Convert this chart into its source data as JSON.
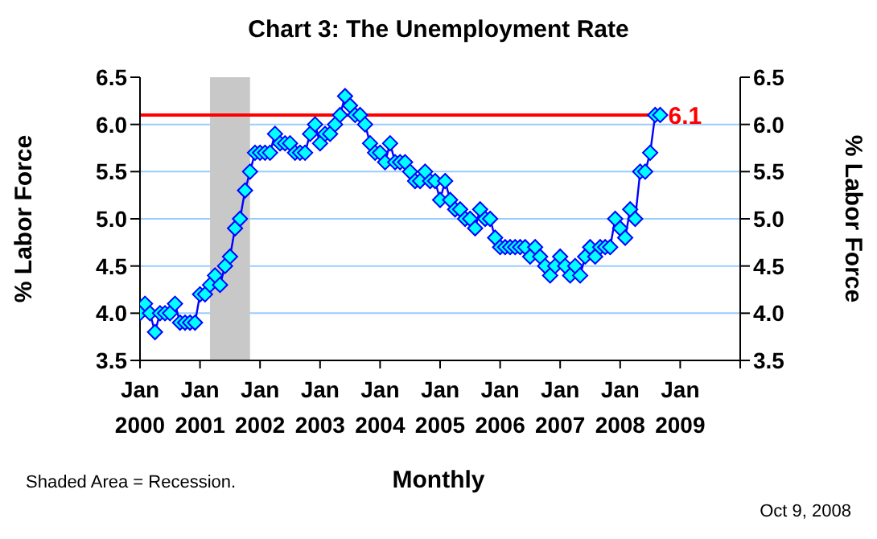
{
  "chart_data": {
    "type": "line",
    "title": "Chart 3: The Unemployment Rate",
    "xlabel": "Monthly",
    "ylabel": "% Labor Force",
    "y2label": "% Labor Force",
    "annotations": [
      "Shaded Area = Recession.",
      "Oct 9, 2008"
    ],
    "x": [
      "2000-01",
      "2000-02",
      "2000-03",
      "2000-04",
      "2000-05",
      "2000-06",
      "2000-07",
      "2000-08",
      "2000-09",
      "2000-10",
      "2000-11",
      "2000-12",
      "2001-01",
      "2001-02",
      "2001-03",
      "2001-04",
      "2001-05",
      "2001-06",
      "2001-07",
      "2001-08",
      "2001-09",
      "2001-10",
      "2001-11",
      "2001-12",
      "2002-01",
      "2002-02",
      "2002-03",
      "2002-04",
      "2002-05",
      "2002-06",
      "2002-07",
      "2002-08",
      "2002-09",
      "2002-10",
      "2002-11",
      "2002-12",
      "2003-01",
      "2003-02",
      "2003-03",
      "2003-04",
      "2003-05",
      "2003-06",
      "2003-07",
      "2003-08",
      "2003-09",
      "2003-10",
      "2003-11",
      "2003-12",
      "2004-01",
      "2004-02",
      "2004-03",
      "2004-04",
      "2004-05",
      "2004-06",
      "2004-07",
      "2004-08",
      "2004-09",
      "2004-10",
      "2004-11",
      "2004-12",
      "2005-01",
      "2005-02",
      "2005-03",
      "2005-04",
      "2005-05",
      "2005-06",
      "2005-07",
      "2005-08",
      "2005-09",
      "2005-10",
      "2005-11",
      "2005-12",
      "2006-01",
      "2006-02",
      "2006-03",
      "2006-04",
      "2006-05",
      "2006-06",
      "2006-07",
      "2006-08",
      "2006-09",
      "2006-10",
      "2006-11",
      "2006-12",
      "2007-01",
      "2007-02",
      "2007-03",
      "2007-04",
      "2007-05",
      "2007-06",
      "2007-07",
      "2007-08",
      "2007-09",
      "2007-10",
      "2007-11",
      "2007-12",
      "2008-01",
      "2008-02",
      "2008-03",
      "2008-04",
      "2008-05",
      "2008-06",
      "2008-07",
      "2008-08",
      "2008-09"
    ],
    "series": [
      {
        "color": "#0000ff",
        "values": [
          4.0,
          4.1,
          4.0,
          3.8,
          4.0,
          4.0,
          4.0,
          4.1,
          3.9,
          3.9,
          3.9,
          3.9,
          4.2,
          4.2,
          4.3,
          4.4,
          4.3,
          4.5,
          4.6,
          4.9,
          5.0,
          5.3,
          5.5,
          5.7,
          5.7,
          5.7,
          5.7,
          5.9,
          5.8,
          5.8,
          5.8,
          5.7,
          5.7,
          5.7,
          5.9,
          6.0,
          5.8,
          5.9,
          5.9,
          6.0,
          6.1,
          6.3,
          6.2,
          6.1,
          6.1,
          6.0,
          5.8,
          5.7,
          5.7,
          5.6,
          5.8,
          5.6,
          5.6,
          5.6,
          5.5,
          5.4,
          5.4,
          5.5,
          5.4,
          5.4,
          5.2,
          5.4,
          5.2,
          5.1,
          5.1,
          5.0,
          5.0,
          4.9,
          5.1,
          5.0,
          5.0,
          4.8,
          4.7,
          4.7,
          4.7,
          4.7,
          4.7,
          4.7,
          4.6,
          4.7,
          4.6,
          4.5,
          4.4,
          4.5,
          4.6,
          4.5,
          4.4,
          4.5,
          4.4,
          4.6,
          4.7,
          4.6,
          4.7,
          4.7,
          4.7,
          5.0,
          4.9,
          4.8,
          5.1,
          5.0,
          5.5,
          5.5,
          5.7,
          6.1,
          6.1
        ]
      }
    ],
    "xlim": [
      "2000-01",
      "2010-01"
    ],
    "xticks": [
      {
        "value": "2000-01",
        "label": "Jan 2000"
      },
      {
        "value": "2001-01",
        "label": "Jan 2001"
      },
      {
        "value": "2002-01",
        "label": "Jan 2002"
      },
      {
        "value": "2003-01",
        "label": "Jan 2003"
      },
      {
        "value": "2004-01",
        "label": "Jan 2004"
      },
      {
        "value": "2005-01",
        "label": "Jan 2005"
      },
      {
        "value": "2006-01",
        "label": "Jan 2006"
      },
      {
        "value": "2007-01",
        "label": "Jan 2007"
      },
      {
        "value": "2008-01",
        "label": "Jan 2008"
      },
      {
        "value": "2009-01",
        "label": "Jan 2009"
      },
      {
        "value": "2010-01",
        "label": null
      }
    ],
    "ylim": [
      3.5,
      6.5
    ],
    "yticks": [
      {
        "value": 3.5,
        "label": "3.5"
      },
      {
        "value": 4,
        "label": "4.0"
      },
      {
        "value": 4.5,
        "label": "4.5"
      },
      {
        "value": 5,
        "label": "5.0"
      },
      {
        "value": 5.5,
        "label": "5.5"
      },
      {
        "value": 6,
        "label": "6.0"
      },
      {
        "value": 6.5,
        "label": "6.5"
      }
    ],
    "y2lim": [
      3.5,
      6.5
    ],
    "y2ticks": [
      {
        "value": 3.5,
        "label": "3.5"
      },
      {
        "value": 4,
        "label": "4.0"
      },
      {
        "value": 4.5,
        "label": "4.5"
      },
      {
        "value": 5,
        "label": "5.0"
      },
      {
        "value": 5.5,
        "label": "5.5"
      },
      {
        "value": 6,
        "label": "6.0"
      },
      {
        "value": 6.5,
        "label": "6.5"
      }
    ],
    "ref_lines": [
      {
        "axis": "y",
        "value": 6.1,
        "label": "6.1",
        "color": "#ff0000"
      }
    ],
    "bands": [
      {
        "axis": "x",
        "from": "2001-03",
        "to": "2001-11",
        "color": "#c8c8c8"
      }
    ],
    "grid": "y",
    "marker": "diamond",
    "line_style": "solid"
  }
}
